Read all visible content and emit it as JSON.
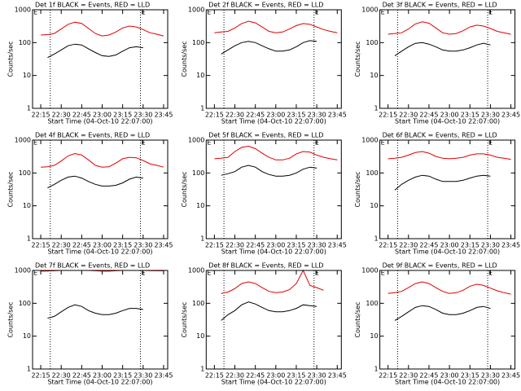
{
  "chart_data": [
    {
      "type": "line",
      "title": "Det 1f BLACK = Events, RED = LLD",
      "xlabel": "Start Time (04-Oct-10 22:07:00)",
      "ylabel": "Counts/sec",
      "log_scale": true,
      "x": [
        "22:15",
        "22:20",
        "22:25",
        "22:30",
        "22:35",
        "22:40",
        "22:45",
        "22:50",
        "22:55",
        "23:00",
        "23:05",
        "23:10",
        "23:15",
        "23:20",
        "23:25",
        "23:30",
        "23:35",
        "23:40",
        "23:45"
      ],
      "xlim": [
        "22:09",
        "23:48"
      ],
      "xticks": [
        "22:15",
        "22:30",
        "22:45",
        "23:00",
        "23:15",
        "23:30",
        "23:45"
      ],
      "ylim": [
        1,
        1000
      ],
      "yticks": [
        1,
        10,
        100,
        1000
      ],
      "vlines": [
        "22:22",
        "23:28"
      ],
      "annotations": [
        {
          "text": "E",
          "x": "22:09"
        },
        {
          "text": "E",
          "x": "23:28"
        }
      ],
      "series": [
        {
          "color": "#000000",
          "values": [
            null,
            35,
            45,
            60,
            80,
            90,
            85,
            65,
            50,
            40,
            38,
            42,
            55,
            70,
            75,
            70,
            null,
            null,
            null
          ]
        },
        {
          "color": "#e00000",
          "values": [
            170,
            175,
            190,
            260,
            360,
            420,
            380,
            270,
            190,
            160,
            170,
            210,
            280,
            320,
            300,
            250,
            200,
            180,
            160
          ]
        }
      ]
    },
    {
      "type": "line",
      "title": "Det 2f BLACK = Events, RED = LLD",
      "xlabel": "Start Time (04-Oct-10 22:07:00)",
      "ylabel": "Counts/sec",
      "log_scale": true,
      "x": [
        "22:15",
        "22:20",
        "22:25",
        "22:30",
        "22:35",
        "22:40",
        "22:45",
        "22:50",
        "22:55",
        "23:00",
        "23:05",
        "23:10",
        "23:15",
        "23:20",
        "23:25",
        "23:30",
        "23:35",
        "23:40",
        "23:45"
      ],
      "xlim": [
        "22:09",
        "23:48"
      ],
      "xticks": [
        "22:15",
        "22:30",
        "22:45",
        "23:00",
        "23:15",
        "23:30",
        "23:45"
      ],
      "ylim": [
        1,
        1000
      ],
      "yticks": [
        1,
        10,
        100,
        1000
      ],
      "vlines": [
        "22:22",
        "23:28"
      ],
      "annotations": [
        {
          "text": "E",
          "x": "22:09"
        },
        {
          "text": "E",
          "x": "23:28"
        }
      ],
      "series": [
        {
          "color": "#000000",
          "values": [
            null,
            45,
            60,
            80,
            100,
            110,
            100,
            80,
            65,
            55,
            55,
            60,
            75,
            100,
            115,
            110,
            null,
            null,
            null
          ]
        },
        {
          "color": "#e00000",
          "values": [
            200,
            210,
            220,
            280,
            380,
            450,
            400,
            300,
            220,
            200,
            210,
            260,
            330,
            380,
            360,
            300,
            250,
            220,
            200
          ]
        }
      ]
    },
    {
      "type": "line",
      "title": "Det 3f BLACK = Events, RED = LLD",
      "xlabel": "Start Time (04-Oct-10 22:07:00)",
      "ylabel": "Counts/sec",
      "log_scale": true,
      "x": [
        "22:15",
        "22:20",
        "22:25",
        "22:30",
        "22:35",
        "22:40",
        "22:45",
        "22:50",
        "22:55",
        "23:00",
        "23:05",
        "23:10",
        "23:15",
        "23:20",
        "23:25",
        "23:30",
        "23:35",
        "23:40",
        "23:45"
      ],
      "xlim": [
        "22:09",
        "23:48"
      ],
      "xticks": [
        "22:15",
        "22:30",
        "22:45",
        "23:00",
        "23:15",
        "23:30",
        "23:45"
      ],
      "ylim": [
        1,
        1000
      ],
      "yticks": [
        1,
        10,
        100,
        1000
      ],
      "vlines": [
        "22:22",
        "23:28"
      ],
      "annotations": [
        {
          "text": "E",
          "x": "22:09"
        },
        {
          "text": "E",
          "x": "23:28"
        }
      ],
      "series": [
        {
          "color": "#000000",
          "values": [
            null,
            40,
            55,
            75,
            95,
            100,
            90,
            75,
            60,
            55,
            55,
            60,
            70,
            85,
            95,
            85,
            null,
            null,
            null
          ]
        },
        {
          "color": "#e00000",
          "values": [
            180,
            190,
            200,
            260,
            370,
            430,
            390,
            280,
            200,
            180,
            190,
            230,
            300,
            340,
            320,
            270,
            220,
            200,
            180
          ]
        }
      ]
    },
    {
      "type": "line",
      "title": "Det 4f BLACK = Events, RED = LLD",
      "xlabel": "Start Time (04-Oct-10 22:07:00)",
      "ylabel": "Counts/sec",
      "log_scale": true,
      "x": [
        "22:15",
        "22:20",
        "22:25",
        "22:30",
        "22:35",
        "22:40",
        "22:45",
        "22:50",
        "22:55",
        "23:00",
        "23:05",
        "23:10",
        "23:15",
        "23:20",
        "23:25",
        "23:30",
        "23:35",
        "23:40",
        "23:45"
      ],
      "xlim": [
        "22:09",
        "23:48"
      ],
      "xticks": [
        "22:15",
        "22:30",
        "22:45",
        "23:00",
        "23:15",
        "23:30",
        "23:45"
      ],
      "ylim": [
        1,
        1000
      ],
      "yticks": [
        1,
        10,
        100,
        1000
      ],
      "vlines": [
        "22:22",
        "23:28"
      ],
      "annotations": [
        {
          "text": "E",
          "x": "22:09"
        },
        {
          "text": "E",
          "x": "23:28"
        }
      ],
      "series": [
        {
          "color": "#000000",
          "values": [
            null,
            35,
            45,
            60,
            75,
            80,
            70,
            55,
            45,
            40,
            40,
            42,
            50,
            65,
            75,
            70,
            null,
            null,
            null
          ]
        },
        {
          "color": "#e00000",
          "values": [
            150,
            155,
            170,
            230,
            330,
            390,
            350,
            250,
            170,
            150,
            155,
            200,
            270,
            300,
            290,
            240,
            190,
            170,
            150
          ]
        }
      ]
    },
    {
      "type": "line",
      "title": "Det 5f BLACK = Events, RED = LLD",
      "xlabel": "Start Time (04-Oct-10 22:07:00)",
      "ylabel": "Counts/sec",
      "log_scale": true,
      "x": [
        "22:15",
        "22:20",
        "22:25",
        "22:30",
        "22:35",
        "22:40",
        "22:45",
        "22:50",
        "22:55",
        "23:00",
        "23:05",
        "23:10",
        "23:15",
        "23:20",
        "23:25",
        "23:30",
        "23:35",
        "23:40",
        "23:45"
      ],
      "xlim": [
        "22:09",
        "23:48"
      ],
      "xticks": [
        "22:15",
        "22:30",
        "22:45",
        "23:00",
        "23:15",
        "23:30",
        "23:45"
      ],
      "ylim": [
        1,
        1000
      ],
      "yticks": [
        1,
        10,
        100,
        1000
      ],
      "vlines": [
        "22:22",
        "23:28"
      ],
      "annotations": [
        {
          "text": "E",
          "x": "22:09"
        },
        {
          "text": "E",
          "x": "23:28"
        }
      ],
      "series": [
        {
          "color": "#000000",
          "values": [
            null,
            85,
            95,
            110,
            150,
            170,
            150,
            110,
            90,
            80,
            80,
            85,
            100,
            130,
            150,
            140,
            null,
            null,
            null
          ]
        },
        {
          "color": "#e00000",
          "values": [
            270,
            280,
            300,
            450,
            600,
            650,
            550,
            400,
            300,
            250,
            250,
            280,
            380,
            450,
            430,
            350,
            300,
            270,
            250
          ]
        }
      ]
    },
    {
      "type": "line",
      "title": "Det 6f BLACK = Events, RED = LLD",
      "xlabel": "Start Time (04-Oct-10 22:07:00)",
      "ylabel": "Counts/sec",
      "log_scale": true,
      "x": [
        "22:15",
        "22:20",
        "22:25",
        "22:30",
        "22:35",
        "22:40",
        "22:45",
        "22:50",
        "22:55",
        "23:00",
        "23:05",
        "23:10",
        "23:15",
        "23:20",
        "23:25",
        "23:30",
        "23:35",
        "23:40",
        "23:45"
      ],
      "xlim": [
        "22:09",
        "23:48"
      ],
      "xticks": [
        "22:15",
        "22:30",
        "22:45",
        "23:00",
        "23:15",
        "23:30",
        "23:45"
      ],
      "ylim": [
        1,
        1000
      ],
      "yticks": [
        1,
        10,
        100,
        1000
      ],
      "vlines": [
        "22:22",
        "23:28"
      ],
      "annotations": [
        {
          "text": "E",
          "x": "22:09"
        },
        {
          "text": "E",
          "x": "23:28"
        }
      ],
      "series": [
        {
          "color": "#000000",
          "values": [
            null,
            30,
            45,
            60,
            75,
            85,
            80,
            65,
            55,
            55,
            55,
            60,
            70,
            80,
            85,
            80,
            null,
            null,
            null
          ]
        },
        {
          "color": "#e00000",
          "values": [
            270,
            280,
            300,
            350,
            420,
            450,
            400,
            320,
            280,
            270,
            280,
            300,
            350,
            380,
            380,
            350,
            300,
            280,
            260
          ]
        }
      ]
    },
    {
      "type": "line",
      "title": "Det 7f BLACK = Events, RED = LLD",
      "xlabel": "Start Time (04-Oct-10 22:07:00)",
      "ylabel": "Counts/sec",
      "log_scale": true,
      "x": [
        "22:15",
        "22:20",
        "22:25",
        "22:30",
        "22:35",
        "22:40",
        "22:45",
        "22:50",
        "22:55",
        "23:00",
        "23:05",
        "23:10",
        "23:15",
        "23:20",
        "23:25",
        "23:30",
        "23:35",
        "23:40",
        "23:45"
      ],
      "xlim": [
        "22:09",
        "23:48"
      ],
      "xticks": [
        "22:15",
        "22:30",
        "22:45",
        "23:00",
        "23:15",
        "23:30",
        "23:45"
      ],
      "ylim": [
        1,
        1000
      ],
      "yticks": [
        1,
        10,
        100,
        1000
      ],
      "vlines": [
        "22:22",
        "23:28"
      ],
      "annotations": [
        {
          "text": "E",
          "x": "22:09"
        },
        {
          "text": "E",
          "x": "23:28"
        }
      ],
      "series": [
        {
          "color": "#000000",
          "values": [
            null,
            35,
            40,
            55,
            75,
            90,
            80,
            60,
            50,
            45,
            45,
            50,
            60,
            70,
            70,
            65,
            null,
            null,
            null
          ]
        },
        {
          "color": "#e00000",
          "values": [
            950,
            960,
            980,
            1000,
            1000,
            1000,
            1000,
            1000,
            980,
            950,
            950,
            980,
            1000,
            1000,
            1000,
            1000,
            990,
            980,
            970
          ]
        }
      ]
    },
    {
      "type": "line",
      "title": "Det 8f BLACK = Events, RED = LLD",
      "xlabel": "Start Time (04-Oct-10 22:07:00)",
      "ylabel": "Counts/sec",
      "log_scale": true,
      "x": [
        "22:15",
        "22:20",
        "22:25",
        "22:30",
        "22:35",
        "22:40",
        "22:45",
        "22:50",
        "22:55",
        "23:00",
        "23:05",
        "23:10",
        "23:15",
        "23:20",
        "23:25",
        "23:30",
        "23:35",
        "23:40",
        "23:45"
      ],
      "xlim": [
        "22:09",
        "23:48"
      ],
      "xticks": [
        "22:15",
        "22:30",
        "22:45",
        "23:00",
        "23:15",
        "23:30",
        "23:45"
      ],
      "ylim": [
        1,
        1000
      ],
      "yticks": [
        1,
        10,
        100,
        1000
      ],
      "vlines": [
        "22:22",
        "23:28"
      ],
      "annotations": [
        {
          "text": "E",
          "x": "22:09"
        },
        {
          "text": "E",
          "x": "23:28"
        }
      ],
      "series": [
        {
          "color": "#000000",
          "values": [
            null,
            30,
            45,
            60,
            90,
            110,
            95,
            75,
            60,
            55,
            55,
            60,
            70,
            90,
            85,
            80,
            null,
            null,
            null
          ]
        },
        {
          "color": "#e00000",
          "values": [
            null,
            200,
            220,
            280,
            400,
            450,
            400,
            300,
            230,
            210,
            220,
            260,
            400,
            1000,
            350,
            300,
            250,
            null,
            null
          ]
        }
      ]
    },
    {
      "type": "line",
      "title": "Det 9f BLACK = Events, RED = LLD",
      "xlabel": "Start Time (04-Oct-10 22:07:00)",
      "ylabel": "Counts/sec",
      "log_scale": true,
      "x": [
        "22:15",
        "22:20",
        "22:25",
        "22:30",
        "22:35",
        "22:40",
        "22:45",
        "22:50",
        "22:55",
        "23:00",
        "23:05",
        "23:10",
        "23:15",
        "23:20",
        "23:25",
        "23:30",
        "23:35",
        "23:40",
        "23:45"
      ],
      "xlim": [
        "22:09",
        "23:48"
      ],
      "xticks": [
        "22:15",
        "22:30",
        "22:45",
        "23:00",
        "23:15",
        "23:30",
        "23:45"
      ],
      "ylim": [
        1,
        1000
      ],
      "yticks": [
        1,
        10,
        100,
        1000
      ],
      "vlines": [
        "22:22",
        "23:28"
      ],
      "annotations": [
        {
          "text": "E",
          "x": "22:09"
        },
        {
          "text": "E",
          "x": "23:28"
        }
      ],
      "series": [
        {
          "color": "#000000",
          "values": [
            null,
            30,
            40,
            55,
            75,
            85,
            80,
            65,
            50,
            45,
            45,
            50,
            60,
            75,
            80,
            70,
            null,
            null,
            null
          ]
        },
        {
          "color": "#e00000",
          "values": [
            200,
            210,
            230,
            300,
            400,
            450,
            400,
            300,
            230,
            200,
            210,
            250,
            330,
            380,
            350,
            290,
            240,
            210,
            190
          ]
        }
      ]
    }
  ]
}
